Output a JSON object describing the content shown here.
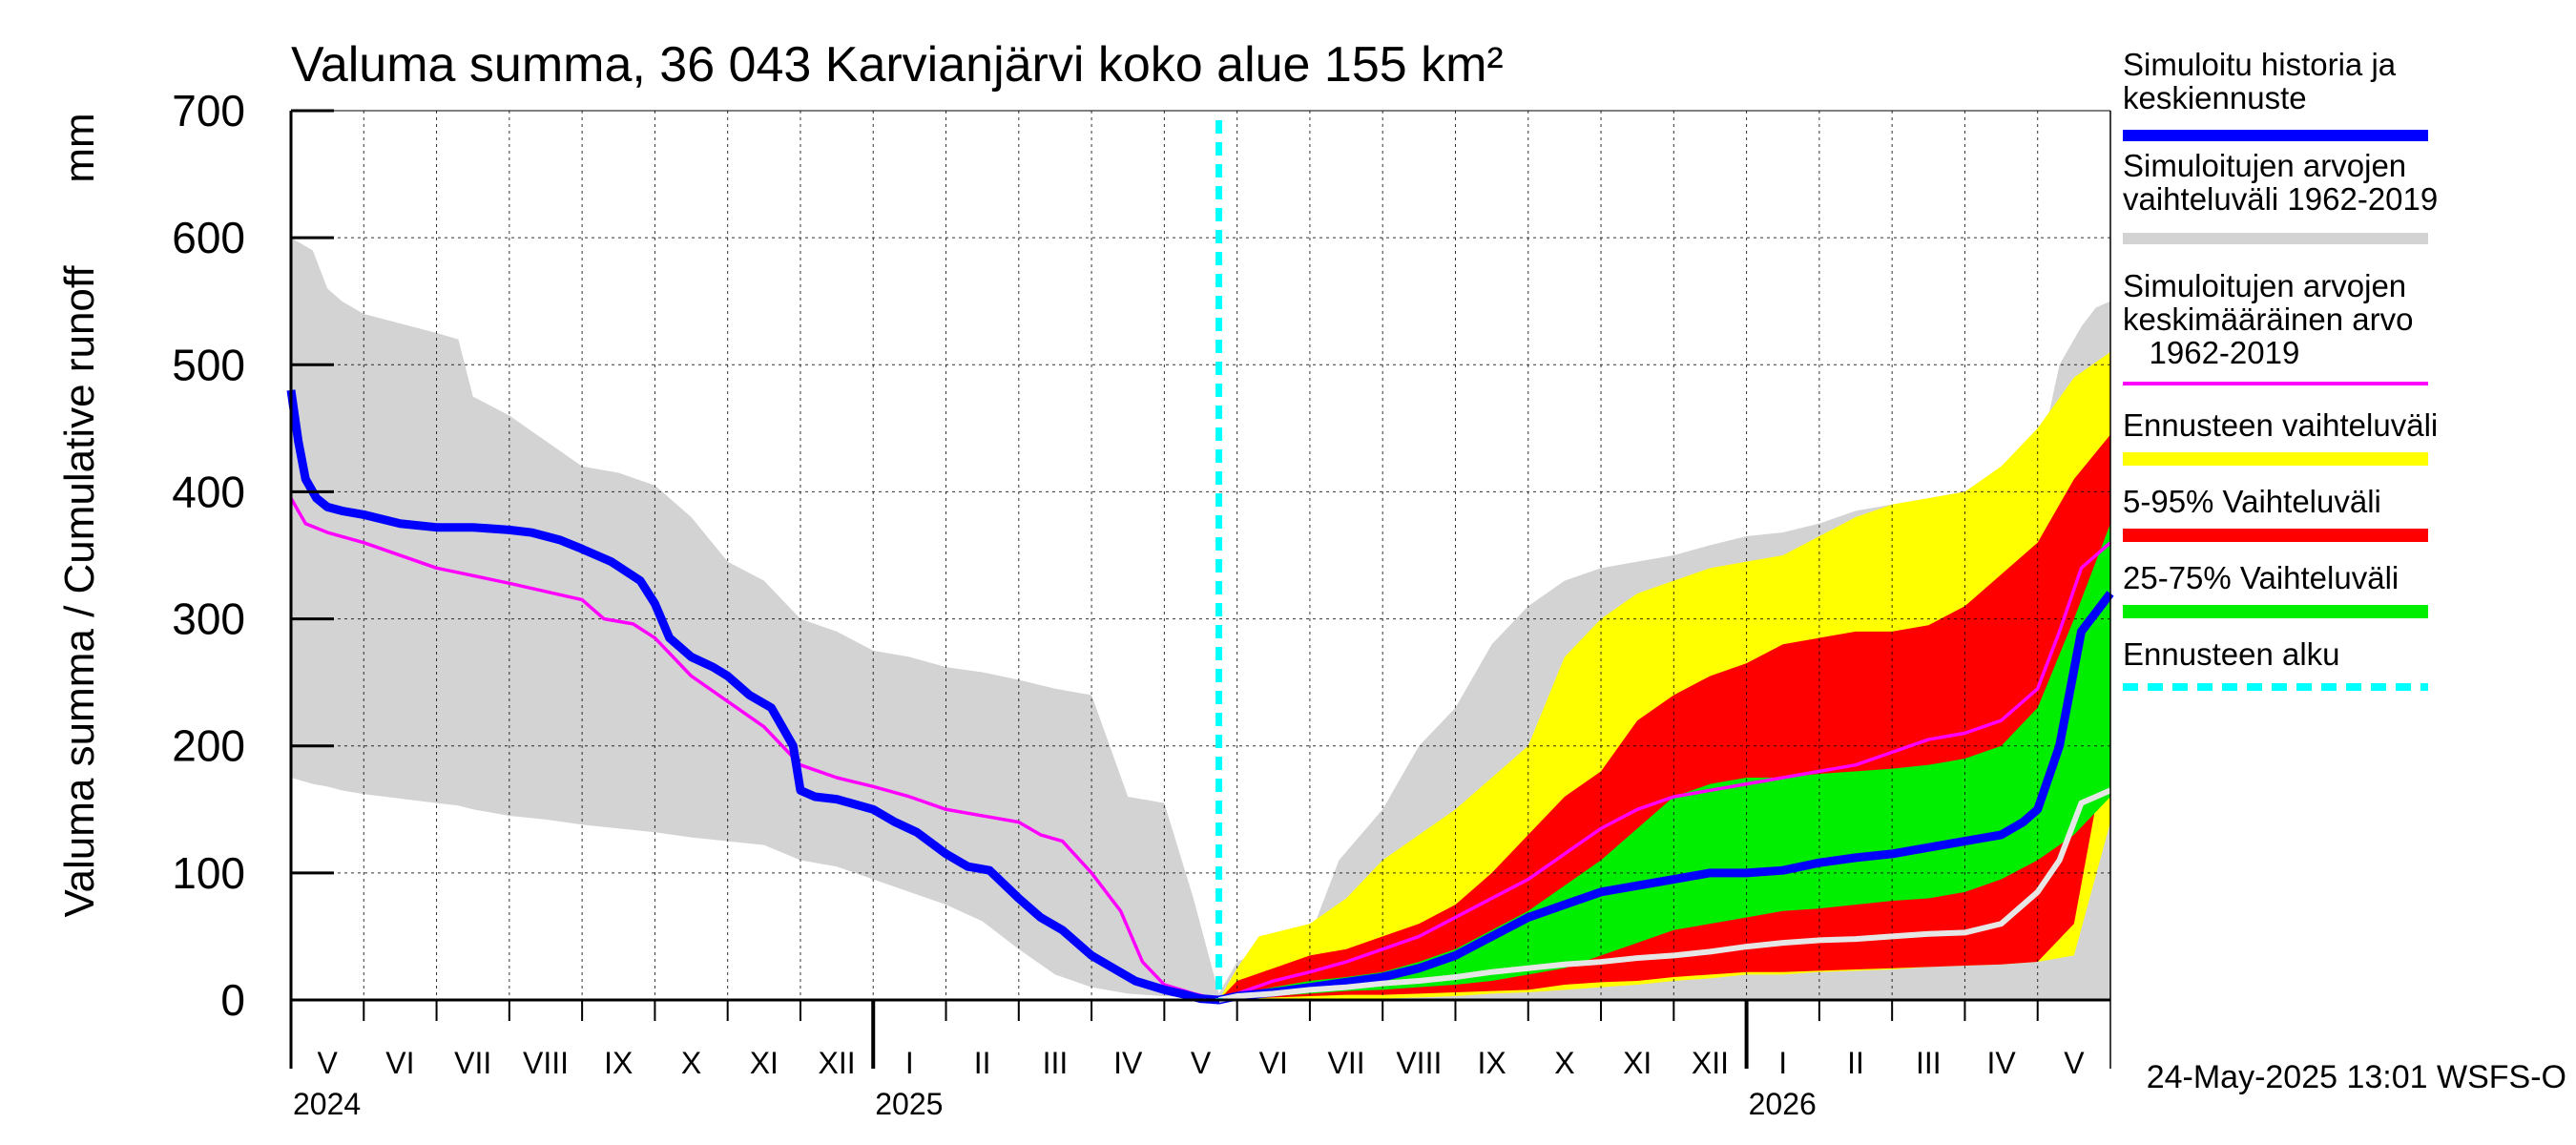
{
  "chart_data": {
    "type": "area",
    "title": "Valuma summa, 36 043 Karvianjärvi koko alue 155 km²",
    "ylabel_left": "Valuma summa / Cumulative runoff",
    "ylabel_right": "mm",
    "ylim": [
      0,
      700
    ],
    "yticks": [
      0,
      100,
      200,
      300,
      400,
      500,
      600,
      700
    ],
    "x_unit": "month index (0 = start of May 2024)",
    "xlim": [
      0,
      25
    ],
    "forecast_start": 12.75,
    "month_labels": [
      "V",
      "VI",
      "VII",
      "VIII",
      "IX",
      "X",
      "XI",
      "XII",
      "I",
      "II",
      "III",
      "IV",
      "V",
      "VI",
      "VII",
      "VIII",
      "IX",
      "X",
      "XI",
      "XII",
      "I",
      "II",
      "III",
      "IV",
      "V"
    ],
    "year_labels": [
      {
        "label": "2024",
        "x": 0
      },
      {
        "label": "2025",
        "x": 8
      },
      {
        "label": "2026",
        "x": 20
      }
    ],
    "series": [
      {
        "name": "historical_range",
        "kind": "band",
        "color": "#d3d3d3",
        "x": [
          0,
          0.3,
          0.5,
          0.7,
          1,
          2,
          2.3,
          2.5,
          3,
          3.5,
          4,
          4.5,
          5,
          5.5,
          6,
          6.5,
          7,
          7.5,
          8,
          8.5,
          9,
          9.5,
          10,
          10.5,
          11,
          11.5,
          12,
          12.4,
          12.75,
          13,
          13.2,
          14,
          14.4,
          14.7,
          15,
          15.5,
          16,
          16.5,
          17,
          17.5,
          18,
          18.5,
          19,
          19.5,
          20,
          20.5,
          21,
          21.5,
          22,
          22.5,
          23,
          23.5,
          24,
          24.3,
          24.6,
          24.8,
          25
        ],
        "upper": [
          600,
          590,
          560,
          550,
          540,
          525,
          520,
          475,
          460,
          440,
          420,
          415,
          405,
          380,
          345,
          330,
          300,
          290,
          275,
          270,
          262,
          258,
          252,
          245,
          240,
          160,
          155,
          80,
          5,
          30,
          35,
          50,
          110,
          130,
          150,
          200,
          230,
          280,
          310,
          330,
          340,
          345,
          350,
          358,
          365,
          368,
          375,
          385,
          390,
          395,
          400,
          408,
          420,
          500,
          530,
          545,
          550
        ],
        "lower": [
          175,
          170,
          168,
          165,
          162,
          155,
          153,
          150,
          145,
          142,
          138,
          135,
          132,
          128,
          125,
          122,
          110,
          105,
          95,
          85,
          75,
          62,
          40,
          20,
          10,
          5,
          3,
          2,
          0,
          0,
          0,
          0,
          0,
          0,
          0,
          0,
          0,
          0,
          0,
          0,
          0,
          0,
          0,
          0,
          0,
          0,
          0,
          0,
          0,
          0,
          0,
          0,
          0,
          0,
          0,
          0,
          0
        ]
      },
      {
        "name": "forecast_range",
        "kind": "band",
        "color": "#ffff00",
        "x": [
          12.75,
          13,
          13.3,
          14,
          14.5,
          15,
          15.5,
          16,
          16.5,
          17,
          17.5,
          18,
          18.5,
          19,
          19.5,
          20,
          20.5,
          21,
          21.5,
          22,
          22.5,
          23,
          23.5,
          24,
          24.5,
          25
        ],
        "upper": [
          0,
          25,
          50,
          60,
          80,
          110,
          130,
          150,
          175,
          200,
          270,
          300,
          320,
          330,
          340,
          345,
          350,
          365,
          380,
          390,
          395,
          400,
          420,
          450,
          490,
          510
        ],
        "lower": [
          0,
          0,
          0,
          1,
          1,
          1,
          2,
          3,
          5,
          6,
          8,
          10,
          12,
          15,
          17,
          20,
          20,
          22,
          23,
          24,
          26,
          27,
          28,
          30,
          35,
          140
        ]
      },
      {
        "name": "range_5_95",
        "kind": "band",
        "color": "#ff0000",
        "x": [
          12.75,
          13,
          13.5,
          14,
          14.5,
          15,
          15.5,
          16,
          16.5,
          17,
          17.5,
          18,
          18.5,
          19,
          19.5,
          20,
          20.5,
          21,
          21.5,
          22,
          22.5,
          23,
          23.5,
          24,
          24.5,
          25
        ],
        "upper": [
          0,
          15,
          25,
          35,
          40,
          50,
          60,
          75,
          100,
          130,
          160,
          180,
          220,
          240,
          255,
          265,
          280,
          285,
          290,
          290,
          295,
          310,
          335,
          360,
          410,
          445
        ],
        "lower": [
          0,
          1,
          2,
          3,
          4,
          4,
          5,
          6,
          7,
          8,
          12,
          14,
          15,
          18,
          20,
          22,
          22,
          23,
          24,
          25,
          26,
          27,
          28,
          30,
          60,
          215
        ]
      },
      {
        "name": "range_25_75",
        "kind": "band",
        "color": "#00ee00",
        "x": [
          12.75,
          13,
          13.5,
          14,
          14.5,
          15,
          15.5,
          16,
          16.5,
          17,
          17.5,
          18,
          18.5,
          19,
          19.5,
          20,
          20.5,
          21,
          21.5,
          22,
          22.5,
          23,
          23.5,
          24,
          24.5,
          25
        ],
        "upper": [
          0,
          5,
          10,
          15,
          18,
          22,
          30,
          40,
          55,
          70,
          90,
          110,
          135,
          160,
          170,
          175,
          175,
          178,
          180,
          182,
          185,
          190,
          200,
          230,
          300,
          375
        ],
        "lower": [
          0,
          2,
          3,
          5,
          7,
          8,
          10,
          12,
          15,
          20,
          25,
          35,
          45,
          55,
          60,
          65,
          70,
          72,
          75,
          78,
          80,
          85,
          95,
          110,
          130,
          160
        ]
      },
      {
        "name": "historical_mean",
        "kind": "line",
        "color": "#ff00ff",
        "x": [
          0,
          0.2,
          0.5,
          1,
          2,
          3,
          4,
          4.3,
          4.7,
          5,
          5.5,
          6,
          6.5,
          7,
          7.5,
          8,
          8.5,
          9,
          9.5,
          10,
          10.3,
          10.6,
          11,
          11.4,
          11.7,
          12,
          12.4,
          12.75,
          13,
          13.5,
          14,
          14.5,
          15,
          15.5,
          16,
          16.5,
          17,
          17.5,
          18,
          18.5,
          19,
          19.5,
          20,
          20.5,
          21,
          21.5,
          22,
          22.5,
          23,
          23.5,
          24,
          24.3,
          24.6,
          25
        ],
        "values": [
          395,
          375,
          368,
          360,
          340,
          328,
          315,
          300,
          296,
          285,
          255,
          235,
          215,
          185,
          175,
          168,
          160,
          150,
          145,
          140,
          130,
          125,
          100,
          70,
          30,
          12,
          5,
          0,
          5,
          15,
          22,
          30,
          40,
          50,
          65,
          80,
          95,
          115,
          135,
          150,
          160,
          165,
          170,
          175,
          180,
          185,
          195,
          205,
          210,
          220,
          245,
          290,
          340,
          360
        ]
      },
      {
        "name": "simulated_history_forecast",
        "kind": "line",
        "color": "#0000ff",
        "width": 9,
        "x": [
          0,
          0.1,
          0.2,
          0.35,
          0.5,
          0.7,
          1,
          1.5,
          2,
          2.5,
          3,
          3.3,
          3.7,
          4,
          4.4,
          4.8,
          5,
          5.2,
          5.5,
          5.8,
          6,
          6.3,
          6.6,
          6.9,
          7,
          7.2,
          7.5,
          8,
          8.3,
          8.6,
          9,
          9.3,
          9.6,
          10,
          10.3,
          10.6,
          11,
          11.3,
          11.6,
          12,
          12.3,
          12.5,
          12.75,
          13,
          13.5,
          14,
          14.5,
          15,
          15.5,
          16,
          16.5,
          17,
          17.5,
          18,
          18.5,
          19,
          19.5,
          20,
          20.5,
          21,
          21.5,
          22,
          22.5,
          23,
          23.5,
          23.8,
          24,
          24.3,
          24.6,
          25
        ],
        "values": [
          480,
          440,
          410,
          395,
          388,
          385,
          382,
          375,
          372,
          372,
          370,
          368,
          362,
          355,
          345,
          330,
          312,
          285,
          270,
          262,
          255,
          240,
          230,
          200,
          165,
          160,
          158,
          150,
          140,
          132,
          115,
          105,
          102,
          80,
          65,
          55,
          35,
          25,
          15,
          8,
          4,
          1,
          0,
          3,
          6,
          10,
          14,
          18,
          25,
          35,
          50,
          65,
          75,
          85,
          90,
          95,
          100,
          100,
          102,
          108,
          112,
          115,
          120,
          125,
          130,
          140,
          150,
          200,
          290,
          320
        ]
      },
      {
        "name": "white_reference",
        "kind": "line",
        "color": "#e6e6e6",
        "width": 6,
        "x": [
          12.75,
          13,
          13.5,
          14,
          14.5,
          15,
          15.5,
          16,
          16.5,
          17,
          17.5,
          18,
          18.5,
          19,
          19.5,
          20,
          20.5,
          21,
          21.5,
          22,
          22.5,
          23,
          23.5,
          24,
          24.3,
          24.6,
          25
        ],
        "values": [
          0,
          3,
          5,
          8,
          10,
          13,
          15,
          18,
          22,
          25,
          28,
          30,
          33,
          35,
          38,
          42,
          45,
          47,
          48,
          50,
          52,
          53,
          60,
          85,
          110,
          155,
          165
        ]
      }
    ]
  },
  "legend": [
    {
      "label": "Simuloitu historia ja\nkeskiennuste",
      "color": "#0000ff",
      "style": "solid"
    },
    {
      "label": "Simuloitujen arvojen\nvaihteluväli 1962-2019",
      "color": "#d3d3d3",
      "style": "solid"
    },
    {
      "label": "Simuloitujen arvojen\nkeskimääräinen arvo\n   1962-2019",
      "color": "#ff00ff",
      "style": "thin"
    },
    {
      "label": "Ennusteen vaihteluväli",
      "color": "#ffff00",
      "style": "solid"
    },
    {
      "label": "5-95% Vaihteluväli",
      "color": "#ff0000",
      "style": "solid"
    },
    {
      "label": "25-75% Vaihteluväli",
      "color": "#00ee00",
      "style": "solid"
    },
    {
      "label": "Ennusteen alku",
      "color": "#00ffff",
      "style": "dashed"
    }
  ],
  "footer": "24-May-2025 13:01 WSFS-O"
}
